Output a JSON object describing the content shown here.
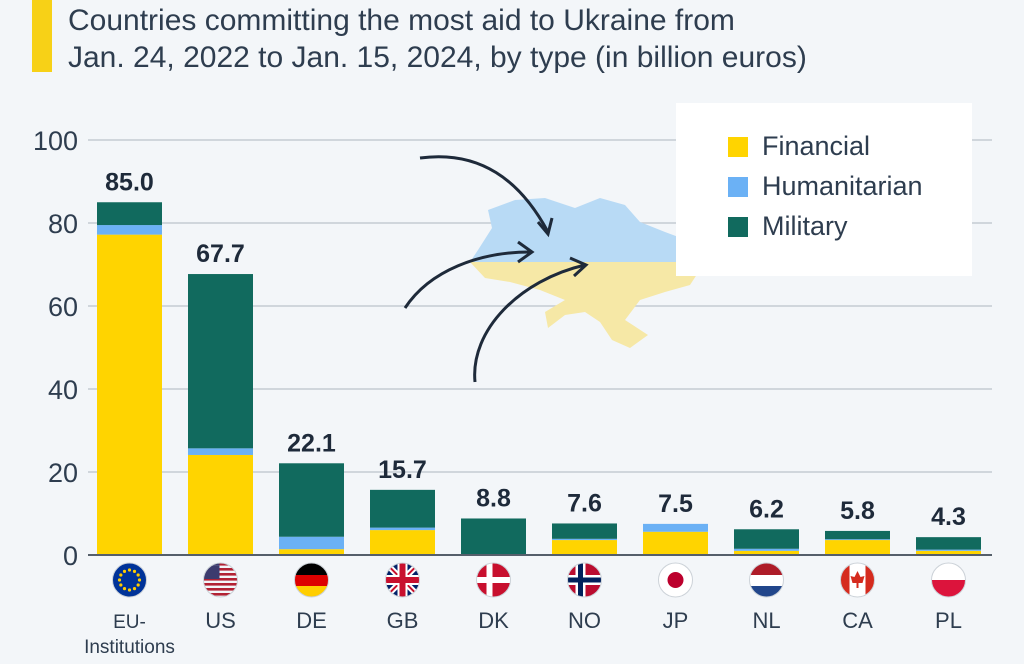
{
  "title_line1": "Countries committing the most aid to Ukraine from",
  "title_line2": "Jan. 24, 2022 to Jan. 15, 2024, by type (in billion euros)",
  "colors": {
    "Financial": "#ffd400",
    "Humanitarian": "#6bb1f5",
    "Military": "#116a5e",
    "accent": "#f7d117"
  },
  "chart_data": {
    "type": "bar",
    "stacked": true,
    "title": "Countries committing the most aid to Ukraine from Jan. 24, 2022 to Jan. 15, 2024, by type (in billion euros)",
    "categories": [
      "EU-Institutions",
      "US",
      "DE",
      "GB",
      "DK",
      "NO",
      "JP",
      "NL",
      "CA",
      "PL"
    ],
    "category_lines": [
      [
        "EU-",
        "Institutions"
      ],
      [
        "US"
      ],
      [
        "DE"
      ],
      [
        "GB"
      ],
      [
        "DK"
      ],
      [
        "NO"
      ],
      [
        "JP"
      ],
      [
        "NL"
      ],
      [
        "CA"
      ],
      [
        "PL"
      ]
    ],
    "flags": [
      "eu",
      "us",
      "de",
      "gb",
      "dk",
      "no",
      "jp",
      "nl",
      "ca",
      "pl"
    ],
    "totals": [
      "85.0",
      "67.7",
      "22.1",
      "15.7",
      "8.8",
      "7.6",
      "7.5",
      "6.2",
      "5.8",
      "4.3"
    ],
    "series": [
      {
        "name": "Financial",
        "values": [
          77.2,
          24.1,
          1.4,
          6.0,
          0.0,
          3.6,
          5.6,
          1.0,
          3.6,
          1.0
        ]
      },
      {
        "name": "Humanitarian",
        "values": [
          2.3,
          1.6,
          3.0,
          0.6,
          0.1,
          0.3,
          1.9,
          0.5,
          0.2,
          0.3
        ]
      },
      {
        "name": "Military",
        "values": [
          5.5,
          42.0,
          17.7,
          9.1,
          8.7,
          3.7,
          0.0,
          4.7,
          2.0,
          3.0
        ]
      }
    ],
    "yticks": [
      "0",
      "20",
      "40",
      "60",
      "80",
      "100"
    ],
    "ylim": [
      0,
      100
    ],
    "grid": true,
    "legend": [
      "Financial",
      "Humanitarian",
      "Military"
    ],
    "legend_position": "top-right"
  }
}
